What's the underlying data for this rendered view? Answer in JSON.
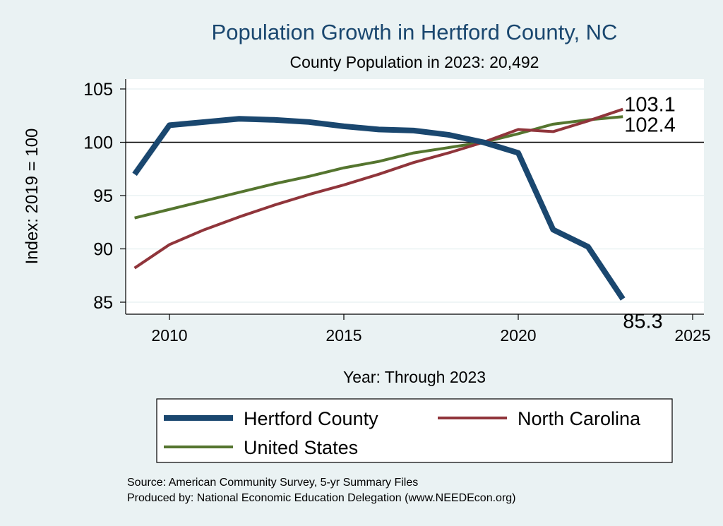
{
  "chart_data": {
    "type": "line",
    "title": "Population Growth in Hertford County, NC",
    "subtitle": "County Population in 2023: 20,492",
    "xlabel": "Year: Through 2023",
    "ylabel": "Index: 2019 = 100",
    "xlim": [
      2008.8,
      2025.3
    ],
    "ylim": [
      84.2,
      106
    ],
    "xticks": [
      2010,
      2015,
      2020,
      2025
    ],
    "yticks": [
      85,
      90,
      95,
      100,
      105
    ],
    "reference_line": 100,
    "x": [
      2009,
      2010,
      2011,
      2012,
      2013,
      2014,
      2015,
      2016,
      2017,
      2018,
      2019,
      2020,
      2021,
      2022,
      2023
    ],
    "series": [
      {
        "name": "Hertford  County",
        "color": "#1a476f",
        "width": 8,
        "values": [
          97.0,
          101.6,
          101.9,
          102.2,
          102.1,
          101.9,
          101.5,
          101.2,
          101.1,
          100.7,
          100.0,
          99.0,
          91.8,
          90.2,
          85.3
        ],
        "end_label": "85.3"
      },
      {
        "name": "North Carolina",
        "color": "#90353b",
        "width": 4,
        "values": [
          88.2,
          90.4,
          91.8,
          93.0,
          94.1,
          95.1,
          96.0,
          97.0,
          98.1,
          99.0,
          100.0,
          101.2,
          101.0,
          102.0,
          103.1
        ],
        "end_label": "103.1"
      },
      {
        "name": "United States",
        "color": "#55752f",
        "width": 4,
        "values": [
          92.9,
          93.7,
          94.5,
          95.3,
          96.1,
          96.8,
          97.6,
          98.2,
          99.0,
          99.5,
          100.0,
          100.8,
          101.7,
          102.1,
          102.4
        ],
        "end_label": "102.4"
      }
    ],
    "legend": "bottom",
    "notes": [
      "Source: American Community Survey, 5-yr Summary Files",
      "Produced by: National Economic Education Delegation (www.NEEDEcon.org)"
    ]
  }
}
